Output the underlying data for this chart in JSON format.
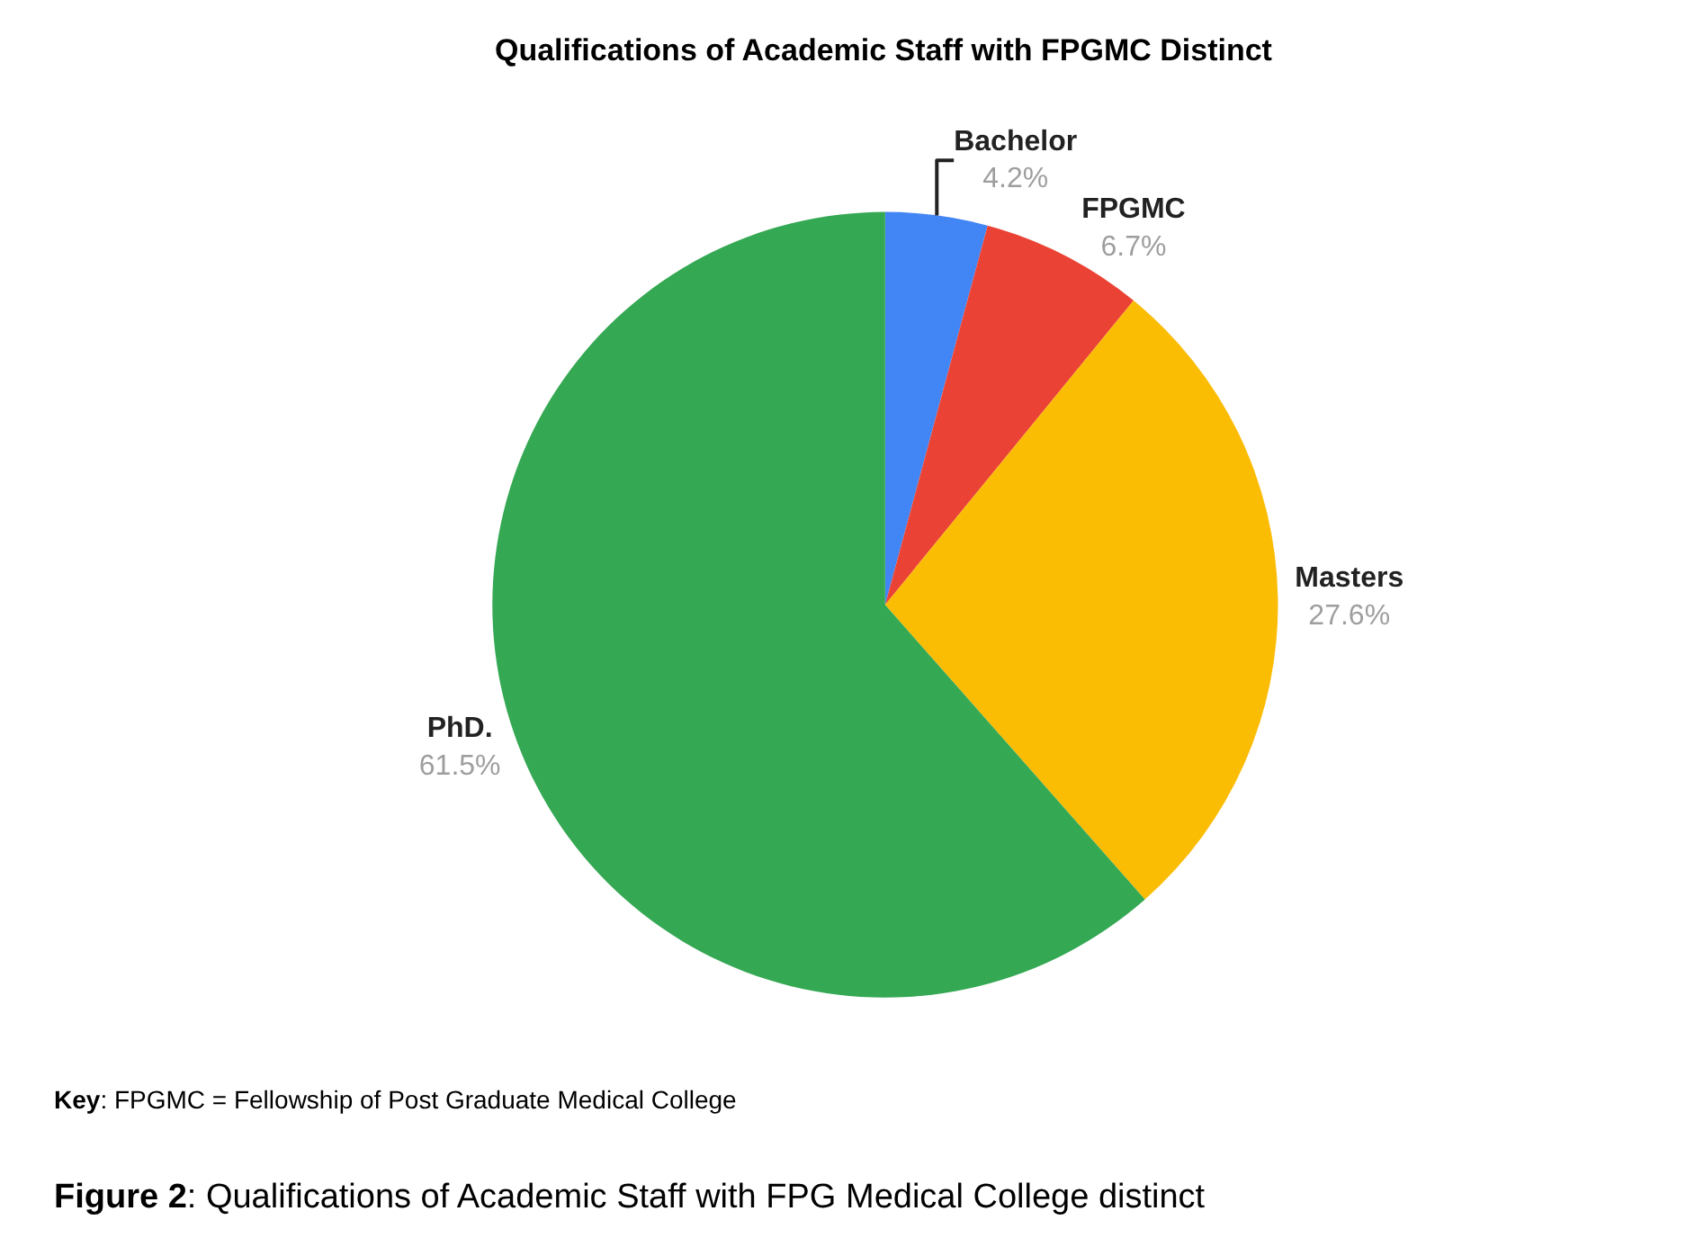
{
  "chart_data": {
    "type": "pie",
    "title": "Qualifications of Academic Staff with FPGMC Distinct",
    "categories": [
      "Bachelor",
      "FPGMC",
      "Masters",
      "PhD."
    ],
    "values": [
      4.2,
      6.7,
      27.6,
      61.5
    ],
    "colors": [
      "#4285f4",
      "#ea4335",
      "#fbbc04",
      "#34a853"
    ],
    "value_labels": [
      "4.2%",
      "6.7%",
      "27.6%",
      "61.5%"
    ],
    "legend": false,
    "annotations": [
      "Key: FPGMC = Fellowship of Post Graduate Medical College",
      "Figure 2: Qualifications of Academic Staff with FPG Medical College distinct"
    ]
  }
}
